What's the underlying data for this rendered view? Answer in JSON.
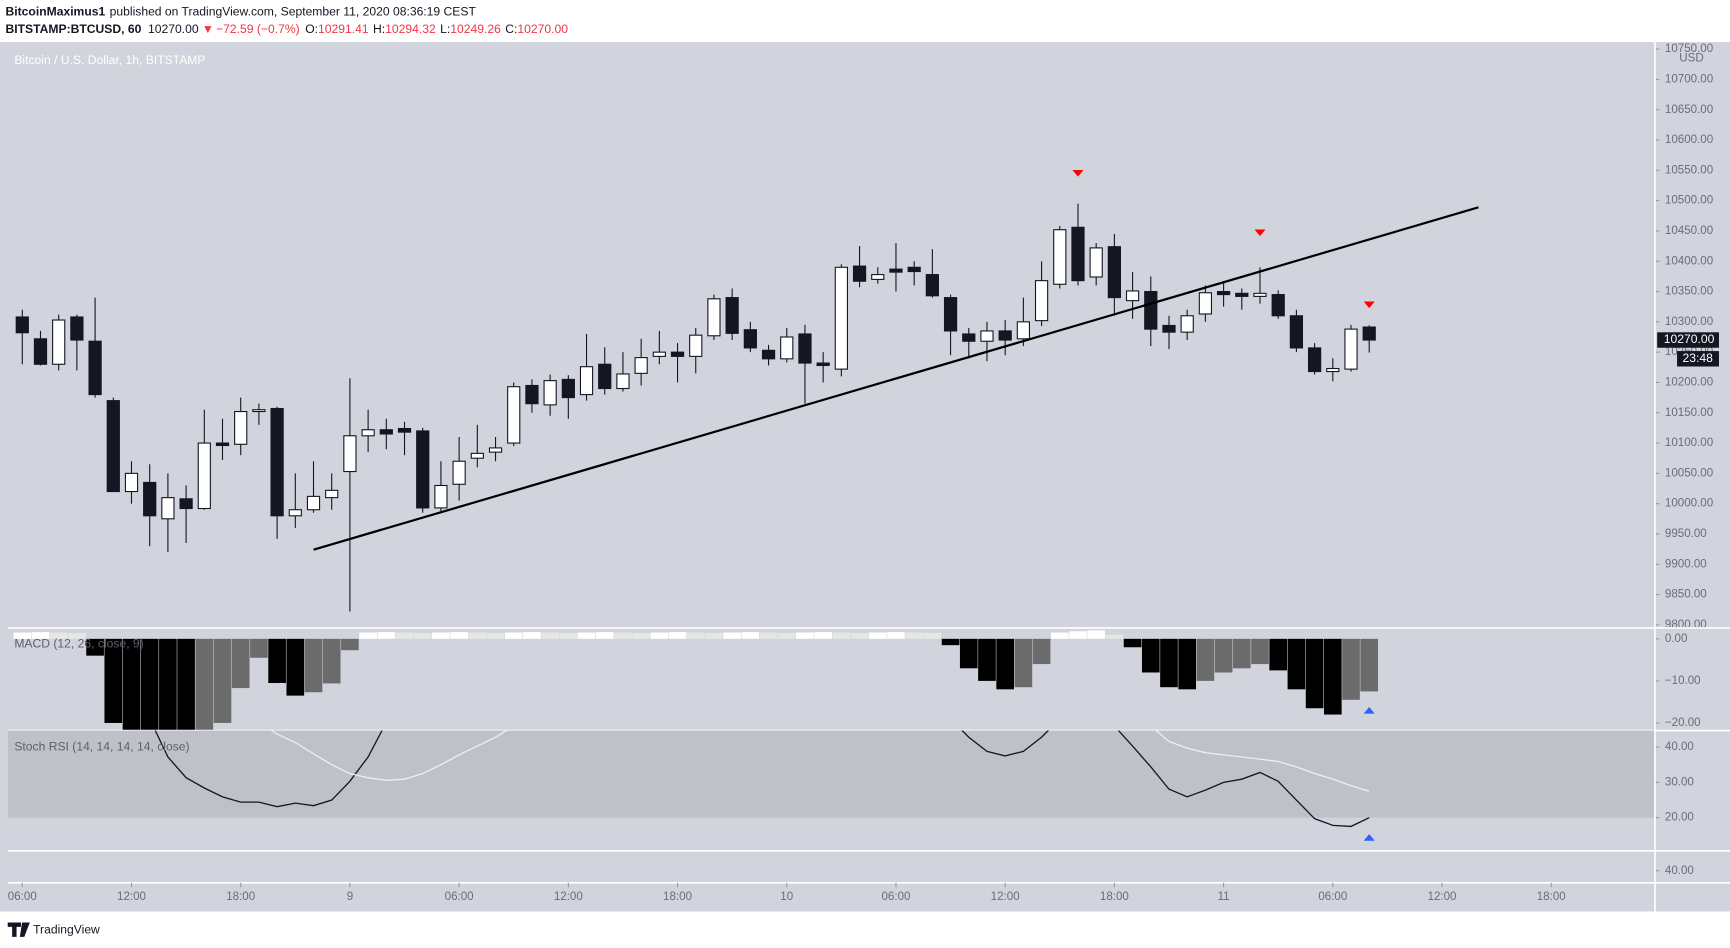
{
  "header": {
    "publisher": "BitcoinMaximus1",
    "published": "published on TradingView.com, September 11, 2020 08:36:19 CEST",
    "symbol": "BITSTAMP:BTCUSD, 60",
    "last": "10270.00",
    "change": "−72.59 (−0.7%)",
    "ohlc": [
      {
        "label": "O:",
        "value": "10291.41"
      },
      {
        "label": "H:",
        "value": "10294.32"
      },
      {
        "label": "L:",
        "value": "10249.26"
      },
      {
        "label": "C:",
        "value": "10270.00"
      }
    ],
    "footer": "TradingView"
  },
  "chart_data": [
    {
      "type": "candlestick",
      "title": "Bitcoin / U.S. Dollar, 1h, BITSTAMP",
      "unit": "USD",
      "up_color": "#ffffff",
      "down_color": "#131722",
      "grid": false,
      "x": [
        0,
        1,
        2,
        3,
        4,
        5,
        6,
        7,
        8,
        9,
        10,
        11,
        12,
        13,
        14,
        15,
        16,
        17,
        18,
        19,
        20,
        21,
        22,
        23,
        24,
        25,
        26,
        27,
        28,
        29,
        30,
        31,
        32,
        33,
        34,
        35,
        36,
        37,
        38,
        39,
        40,
        41,
        42,
        43,
        44,
        45,
        46,
        47,
        48,
        49,
        50,
        51,
        52,
        53,
        54,
        55,
        56,
        57,
        58,
        59,
        60,
        61,
        62,
        63,
        64,
        65,
        66,
        67,
        68,
        69,
        70,
        71,
        72,
        73,
        74
      ],
      "open": [
        10308,
        10272,
        10230,
        10308,
        10268,
        10170,
        10020,
        10035,
        9975,
        10008,
        9992,
        10100,
        10098,
        10152,
        10157,
        9980,
        9990,
        10010,
        10053,
        10112,
        10122,
        10124,
        10120,
        9993,
        10032,
        10075,
        10085,
        10100,
        10195,
        10163,
        10205,
        10180,
        10230,
        10190,
        10215,
        10243,
        10250,
        10243,
        10277,
        10340,
        10287,
        10253,
        10239,
        10280,
        10232,
        10222,
        10392,
        10370,
        10387,
        10390,
        10378,
        10340,
        10280,
        10268,
        10285,
        10272,
        10302,
        10362,
        10456,
        10374,
        10424,
        10335,
        10350,
        10294,
        10283,
        10313,
        10350,
        10347,
        10342,
        10345,
        10310,
        10257,
        10218,
        10222,
        10291.41
      ],
      "high": [
        10320,
        10285,
        10312,
        10312,
        10340,
        10175,
        10070,
        10065,
        10050,
        10030,
        10155,
        10140,
        10175,
        10165,
        10160,
        10050,
        10070,
        10050,
        10207,
        10155,
        10140,
        10135,
        10125,
        10070,
        10110,
        10130,
        10110,
        10200,
        10205,
        10213,
        10212,
        10280,
        10258,
        10250,
        10272,
        10285,
        10265,
        10290,
        10345,
        10355,
        10300,
        10262,
        10290,
        10295,
        10250,
        10395,
        10425,
        10390,
        10430,
        10400,
        10420,
        10345,
        10290,
        10300,
        10303,
        10340,
        10400,
        10458,
        10495,
        10430,
        10445,
        10382,
        10375,
        10310,
        10320,
        10360,
        10365,
        10355,
        10390,
        10352,
        10320,
        10265,
        10240,
        10295,
        10294.32
      ],
      "low": [
        10230,
        10228,
        10220,
        10220,
        10175,
        10020,
        10000,
        9930,
        9920,
        9935,
        9990,
        10072,
        10080,
        10130,
        9942,
        9960,
        9985,
        9990,
        9822,
        10085,
        10090,
        10080,
        9985,
        9985,
        10005,
        10060,
        10070,
        10095,
        10150,
        10145,
        10140,
        10170,
        10180,
        10185,
        10195,
        10230,
        10200,
        10215,
        10270,
        10270,
        10250,
        10228,
        10233,
        10165,
        10200,
        10210,
        10357,
        10363,
        10350,
        10360,
        10340,
        10245,
        10240,
        10235,
        10245,
        10260,
        10293,
        10355,
        10360,
        10360,
        10310,
        10305,
        10260,
        10255,
        10270,
        10300,
        10325,
        10320,
        10330,
        10305,
        10250,
        10213,
        10202,
        10218,
        10249.26
      ],
      "close": [
        10282,
        10230,
        10303,
        10270,
        10180,
        10020,
        10050,
        9980,
        10010,
        9992,
        10100,
        10096,
        10152,
        10155,
        9980,
        9990,
        10012,
        10022,
        10112,
        10122,
        10115,
        10118,
        9993,
        10030,
        10070,
        10083,
        10092,
        10193,
        10165,
        10203,
        10175,
        10226,
        10190,
        10214,
        10241,
        10250,
        10243,
        10278,
        10338,
        10281,
        10257,
        10239,
        10275,
        10232,
        10228,
        10390,
        10367,
        10378,
        10382,
        10383,
        10343,
        10285,
        10268,
        10285,
        10270,
        10300,
        10368,
        10452,
        10368,
        10422,
        10340,
        10351,
        10288,
        10283,
        10310,
        10348,
        10345,
        10342,
        10347,
        10310,
        10257,
        10218,
        10223,
        10288,
        10270
      ],
      "xlim": [
        -0.8,
        89.7
      ],
      "xticks": [
        {
          "value": 0,
          "label": "06:00"
        },
        {
          "value": 6,
          "label": "12:00"
        },
        {
          "value": 12,
          "label": "18:00"
        },
        {
          "value": 18,
          "label": "9"
        },
        {
          "value": 24,
          "label": "06:00"
        },
        {
          "value": 30,
          "label": "12:00"
        },
        {
          "value": 36,
          "label": "18:00"
        },
        {
          "value": 42,
          "label": "10"
        },
        {
          "value": 48,
          "label": "06:00"
        },
        {
          "value": 54,
          "label": "12:00"
        },
        {
          "value": 60,
          "label": "18:00"
        },
        {
          "value": 66,
          "label": "11"
        },
        {
          "value": 72,
          "label": "06:00"
        },
        {
          "value": 78,
          "label": "12:00"
        },
        {
          "value": 84,
          "label": "18:00"
        }
      ],
      "ylim": [
        9795,
        10758
      ],
      "yticks": [
        {
          "value": 9800,
          "label": "9800.00"
        },
        {
          "value": 9850,
          "label": "9850.00"
        },
        {
          "value": 9900,
          "label": "9900.00"
        },
        {
          "value": 9950,
          "label": "9950.00"
        },
        {
          "value": 10000,
          "label": "10000.00"
        },
        {
          "value": 10050,
          "label": "10050.00"
        },
        {
          "value": 10100,
          "label": "10100.00"
        },
        {
          "value": 10150,
          "label": "10150.00"
        },
        {
          "value": 10200,
          "label": "10200.00"
        },
        {
          "value": 10250,
          "label": "10250.00"
        },
        {
          "value": 10300,
          "label": "10300.00"
        },
        {
          "value": 10350,
          "label": "10350.00"
        },
        {
          "value": 10400,
          "label": "10400.00"
        },
        {
          "value": 10450,
          "label": "10450.00"
        },
        {
          "value": 10500,
          "label": "10500.00"
        },
        {
          "value": 10550,
          "label": "10550.00"
        },
        {
          "value": 10600,
          "label": "10600.00"
        },
        {
          "value": 10650,
          "label": "10650.00"
        },
        {
          "value": 10700,
          "label": "10700.00"
        },
        {
          "value": 10750,
          "label": "10750.00"
        }
      ],
      "last_price": {
        "value": 10270,
        "label": "10270.00"
      },
      "countdown": "23:48",
      "trendline": {
        "x": [
          16,
          80
        ],
        "y": [
          9924,
          10489
        ],
        "color": "#000000"
      },
      "markers": {
        "x": [
          58,
          68,
          74
        ],
        "y": [
          10545,
          10447,
          10328
        ],
        "color": "#ff0000",
        "direction": "down"
      }
    },
    {
      "type": "bar",
      "title": "MACD (12, 26, close, 9)",
      "values": [
        1.5,
        1.6,
        1.5,
        1.4,
        -4,
        -20,
        -22,
        -23,
        -24,
        -24.5,
        -23,
        -20,
        -11.7,
        -4.5,
        -10.5,
        -13.5,
        -12.7,
        -10.6,
        -2.7,
        1.5,
        1.6,
        1.5,
        1.4,
        1.5,
        1.6,
        1.5,
        1.4,
        1.5,
        1.6,
        1.5,
        1.4,
        1.5,
        1.6,
        1.5,
        1.4,
        1.5,
        1.6,
        1.5,
        1.4,
        1.5,
        1.6,
        1.5,
        1.4,
        1.5,
        1.6,
        1.5,
        1.4,
        1.5,
        1.6,
        1.5,
        1.4,
        -1.5,
        -7,
        -10,
        -12,
        -11.5,
        -6,
        1.5,
        1.8,
        2,
        1,
        -2,
        -8,
        -11.5,
        -12,
        -10,
        -8,
        -7,
        -6,
        -7.5,
        -12,
        -16.5,
        -18,
        -14.5,
        -12.5
      ],
      "colors": {
        "negative_falling": "#000000",
        "negative_rising": "#6b6b6b",
        "positive_rising": "#ffffff",
        "positive_falling": "#e6e6e6"
      },
      "ylim": [
        -21.8,
        2.6
      ],
      "yticks": [
        {
          "value": 0,
          "label": "0.00"
        },
        {
          "value": -10,
          "label": "−10.00"
        },
        {
          "value": -20,
          "label": "−20.00"
        }
      ],
      "markers": {
        "x": [
          74
        ],
        "y": [
          -17
        ],
        "color": "#2962ff",
        "direction": "up"
      }
    },
    {
      "type": "line",
      "title": "Stoch RSI (14, 14, 14, 14, close)",
      "band": [
        20,
        80
      ],
      "band_color": "#bfc1c9",
      "series": [
        {
          "color": "#131722",
          "values": [
            null,
            null,
            null,
            null,
            null,
            null,
            null,
            48,
            37.2,
            31.3,
            28.4,
            25.9,
            24.4,
            24.4,
            23.1,
            24.1,
            23.4,
            25,
            30.3,
            37.2,
            47,
            null,
            null,
            null,
            null,
            null,
            null,
            null,
            null,
            null,
            null,
            null,
            null,
            null,
            null,
            null,
            null,
            null,
            null,
            null,
            null,
            null,
            null,
            null,
            null,
            null,
            null,
            null,
            null,
            null,
            null,
            48,
            42.8,
            38.8,
            37.5,
            38.8,
            42.8,
            48,
            null,
            null,
            46,
            40.3,
            34.4,
            28.1,
            25.9,
            27.8,
            30,
            30.9,
            32.8,
            30.3,
            25,
            19.7,
            17.8,
            17.5,
            20
          ]
        },
        {
          "color": "#eceef2",
          "values": [
            null,
            null,
            null,
            null,
            null,
            null,
            null,
            null,
            null,
            null,
            null,
            null,
            null,
            47,
            43.7,
            41.3,
            38.1,
            35,
            32.5,
            31.3,
            30.6,
            30.9,
            32.5,
            35,
            37.8,
            40.3,
            42.8,
            46,
            null,
            null,
            null,
            null,
            null,
            null,
            null,
            null,
            null,
            null,
            null,
            null,
            null,
            null,
            null,
            null,
            null,
            null,
            null,
            null,
            null,
            null,
            null,
            null,
            null,
            null,
            null,
            null,
            null,
            null,
            null,
            null,
            null,
            null,
            46,
            41.6,
            39.7,
            38.4,
            37.8,
            37.2,
            36.6,
            35.9,
            34.4,
            32.5,
            30.9,
            29.1,
            27.5
          ]
        }
      ],
      "ylim": [
        10.6,
        44.7
      ],
      "yticks": [
        {
          "value": 40,
          "label": "40.00"
        },
        {
          "value": 30,
          "label": "30.00"
        },
        {
          "value": 20,
          "label": "20.00"
        }
      ],
      "markers": {
        "x": [
          74
        ],
        "y": [
          14.4
        ],
        "color": "#2962ff",
        "direction": "up"
      }
    },
    {
      "type": "line",
      "series": [],
      "ylim": [
        37,
        45
      ],
      "yticks": [
        {
          "value": 40,
          "label": "40.00"
        }
      ]
    }
  ]
}
